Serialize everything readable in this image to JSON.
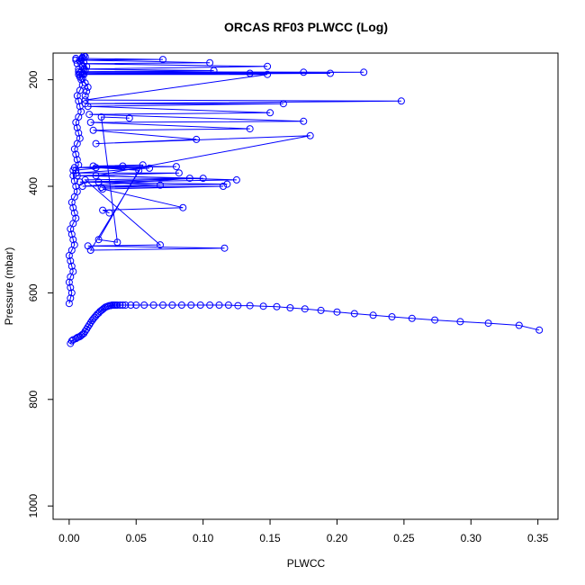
{
  "chart_data": {
    "type": "scatter",
    "title": "ORCAS RF03 PLWCC (Log)",
    "xlabel": "PLWCC",
    "ylabel": "Pressure (mbar)",
    "xlim": [
      -0.012,
      0.365
    ],
    "ylim": [
      1025,
      150
    ],
    "y_reversed": true,
    "grid": false,
    "x_ticks": [
      0.0,
      0.05,
      0.1,
      0.15,
      0.2,
      0.25,
      0.3,
      0.35
    ],
    "x_tick_labels": [
      "0.00",
      "0.05",
      "0.10",
      "0.15",
      "0.20",
      "0.25",
      "0.30",
      "0.35"
    ],
    "y_ticks": [
      200,
      400,
      600,
      800,
      1000
    ],
    "y_tick_labels": [
      "200",
      "400",
      "600",
      "800",
      "1000"
    ],
    "color": "#0000ff",
    "series": [
      {
        "x": [
          0.001,
          0.002,
          0.003,
          0.005,
          0.006,
          0.007,
          0.008,
          0.009,
          0.01,
          0.011,
          0.012,
          0.013,
          0.014,
          0.015,
          0.016,
          0.017,
          0.018,
          0.019,
          0.02,
          0.021,
          0.022,
          0.023,
          0.024,
          0.025,
          0.026,
          0.027,
          0.028,
          0.029,
          0.03,
          0.031,
          0.032,
          0.033,
          0.034,
          0.035,
          0.036,
          0.038,
          0.04,
          0.042,
          0.046,
          0.05,
          0.056,
          0.063,
          0.07,
          0.077,
          0.084,
          0.091,
          0.098,
          0.105,
          0.112,
          0.119,
          0.126,
          0.135,
          0.145,
          0.155,
          0.165,
          0.176,
          0.188,
          0.2,
          0.213,
          0.227,
          0.241,
          0.256,
          0.273,
          0.292,
          0.313,
          0.336,
          0.351
        ],
        "y": [
          695,
          690,
          688,
          686,
          684,
          683,
          682,
          680,
          678,
          676,
          672,
          668,
          664,
          660,
          656,
          652,
          649,
          646,
          643,
          640,
          638,
          635,
          633,
          631,
          629,
          627,
          626,
          625,
          624,
          624,
          623,
          623,
          623,
          623,
          623,
          623,
          623,
          623,
          623,
          623,
          623,
          623,
          623,
          623,
          623,
          623,
          623,
          623,
          623,
          623,
          624,
          624,
          625,
          626,
          628,
          630,
          633,
          636,
          639,
          642,
          645,
          648,
          651,
          654,
          657,
          661,
          670
        ]
      },
      {
        "x": [
          0.0,
          0.001,
          0.002,
          0.001,
          0.0,
          0.001,
          0.003,
          0.002,
          0.001,
          0.0,
          0.002,
          0.004,
          0.003,
          0.002,
          0.001,
          0.003,
          0.005,
          0.004,
          0.003,
          0.002,
          0.004,
          0.006,
          0.005,
          0.004,
          0.003,
          0.005,
          0.007,
          0.006,
          0.005,
          0.004,
          0.006,
          0.008,
          0.007,
          0.006,
          0.005,
          0.007,
          0.009,
          0.008,
          0.007,
          0.006,
          0.008,
          0.01,
          0.009,
          0.008,
          0.007,
          0.009,
          0.011,
          0.01,
          0.009,
          0.008,
          0.01,
          0.012,
          0.011,
          0.01,
          0.009,
          0.011,
          0.013,
          0.012,
          0.011,
          0.01,
          0.012,
          0.014,
          0.013,
          0.012
        ],
        "y": [
          620,
          610,
          600,
          590,
          580,
          570,
          560,
          550,
          540,
          530,
          520,
          510,
          500,
          490,
          480,
          470,
          460,
          450,
          440,
          430,
          420,
          410,
          400,
          390,
          380,
          370,
          360,
          350,
          340,
          330,
          320,
          310,
          300,
          290,
          280,
          270,
          260,
          250,
          240,
          230,
          220,
          210,
          200,
          195,
          190,
          185,
          180,
          175,
          170,
          165,
          160,
          157,
          155,
          158,
          162,
          168,
          175,
          182,
          190,
          198,
          206,
          214,
          222,
          230
        ]
      },
      {
        "x": [
          0.005,
          0.07,
          0.005,
          0.105,
          0.006,
          0.148,
          0.007,
          0.108,
          0.007,
          0.22,
          0.008,
          0.195,
          0.008,
          0.175,
          0.01,
          0.135,
          0.01,
          0.148,
          0.012,
          0.248,
          0.012,
          0.16,
          0.014,
          0.15,
          0.015,
          0.175,
          0.016,
          0.135,
          0.018,
          0.095,
          0.02,
          0.18,
          0.02,
          0.125,
          0.022,
          0.068,
          0.024,
          0.115,
          0.025,
          0.085,
          0.025,
          0.03
        ],
        "y": [
          160,
          162,
          163,
          168,
          170,
          175,
          180,
          183,
          185,
          186,
          187,
          188,
          190,
          186,
          189,
          188,
          190,
          190,
          238,
          240,
          245,
          245,
          250,
          262,
          265,
          278,
          280,
          292,
          295,
          312,
          320,
          305,
          380,
          388,
          392,
          398,
          402,
          400,
          405,
          440,
          445,
          450
        ]
      },
      {
        "x": [
          0.003,
          0.04,
          0.004,
          0.06,
          0.005,
          0.082,
          0.006,
          0.1,
          0.008,
          0.118,
          0.01,
          0.09,
          0.012,
          0.068,
          0.014,
          0.116,
          0.016,
          0.055,
          0.018,
          0.08,
          0.02,
          0.052,
          0.022,
          0.036,
          0.024,
          0.045
        ],
        "y": [
          370,
          362,
          365,
          366,
          375,
          375,
          380,
          385,
          392,
          396,
          400,
          385,
          388,
          510,
          512,
          516,
          520,
          360,
          362,
          363,
          365,
          370,
          500,
          505,
          270,
          272
        ]
      }
    ]
  }
}
